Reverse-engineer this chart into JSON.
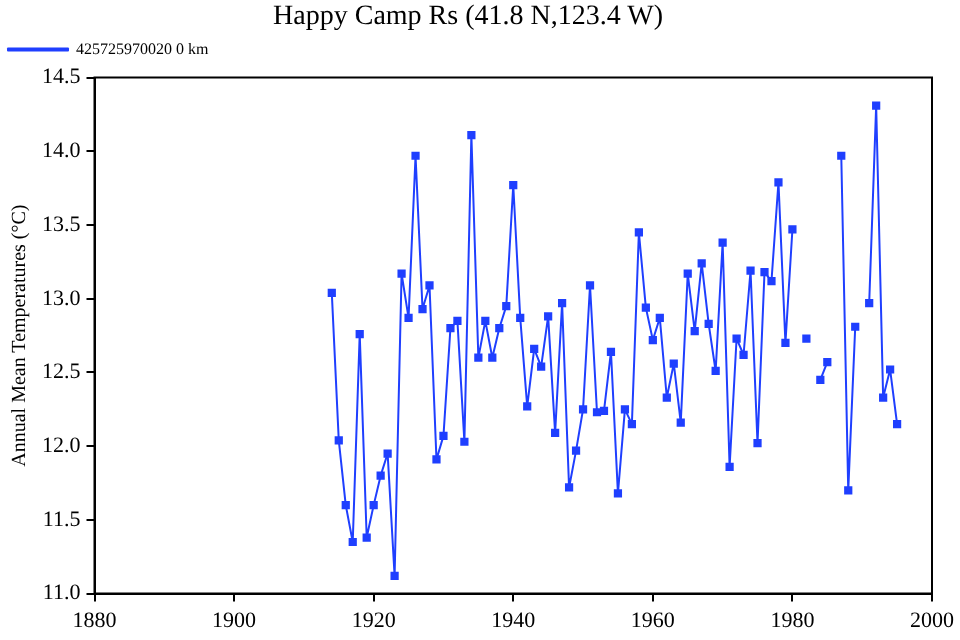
{
  "chart_data": {
    "type": "line",
    "title": "Happy Camp Rs (41.8 N,123.4 W)",
    "ylabel": "Annual Mean Temperatures (°C)",
    "x": [
      1914,
      1915,
      1916,
      1917,
      1918,
      1919,
      1920,
      1921,
      1922,
      1923,
      1924,
      1925,
      1926,
      1927,
      1928,
      1929,
      1930,
      1931,
      1932,
      1933,
      1934,
      1935,
      1936,
      1937,
      1938,
      1939,
      1940,
      1941,
      1942,
      1943,
      1944,
      1945,
      1946,
      1947,
      1948,
      1949,
      1950,
      1951,
      1952,
      1953,
      1954,
      1955,
      1956,
      1957,
      1958,
      1959,
      1960,
      1961,
      1962,
      1963,
      1964,
      1965,
      1966,
      1967,
      1968,
      1969,
      1970,
      1971,
      1972,
      1973,
      1974,
      1975,
      1976,
      1977,
      1978,
      1979,
      1980,
      1981,
      1982,
      1983,
      1984,
      1985,
      1986,
      1987,
      1988,
      1989,
      1990,
      1991,
      1992,
      1993,
      1994,
      1995
    ],
    "series": [
      {
        "name": "425725970020 0 km",
        "color": "#1f3fff",
        "values": [
          13.04,
          12.04,
          11.6,
          11.35,
          12.76,
          11.38,
          11.6,
          11.8,
          11.95,
          11.12,
          13.17,
          12.87,
          13.97,
          12.93,
          13.09,
          11.91,
          12.07,
          12.8,
          12.85,
          12.03,
          14.11,
          12.6,
          12.85,
          12.6,
          12.8,
          12.95,
          13.77,
          12.87,
          12.27,
          12.66,
          12.54,
          12.88,
          12.09,
          12.97,
          11.72,
          11.97,
          12.25,
          13.09,
          12.23,
          12.24,
          12.64,
          11.68,
          12.25,
          12.15,
          13.45,
          12.94,
          12.72,
          12.87,
          12.33,
          12.56,
          12.16,
          13.17,
          12.78,
          13.24,
          12.83,
          12.51,
          13.38,
          11.86,
          12.73,
          12.62,
          13.19,
          12.02,
          13.18,
          13.12,
          13.79,
          12.7,
          13.47,
          null,
          12.73,
          null,
          12.45,
          12.57,
          null,
          13.97,
          11.7,
          12.81,
          null,
          12.97,
          14.31,
          12.33,
          12.52,
          12.15
        ]
      }
    ],
    "xlim": [
      1880,
      2000
    ],
    "xticks": [
      1880,
      1900,
      1920,
      1940,
      1960,
      1980,
      2000
    ],
    "ylim": [
      11.0,
      14.5
    ],
    "yticks": [
      {
        "value": 11.0,
        "label": "11.0"
      },
      {
        "value": 11.5,
        "label": "11.5"
      },
      {
        "value": 12.0,
        "label": "12.0"
      },
      {
        "value": 12.5,
        "label": "12.5"
      },
      {
        "value": 13.0,
        "label": "13.0"
      },
      {
        "value": 13.5,
        "label": "13.5"
      },
      {
        "value": 14.0,
        "label": "14.0"
      },
      {
        "value": 14.5,
        "label": "14.5"
      }
    ],
    "grid": false,
    "legend": "top left",
    "marker": "square",
    "line_style": "solid"
  }
}
